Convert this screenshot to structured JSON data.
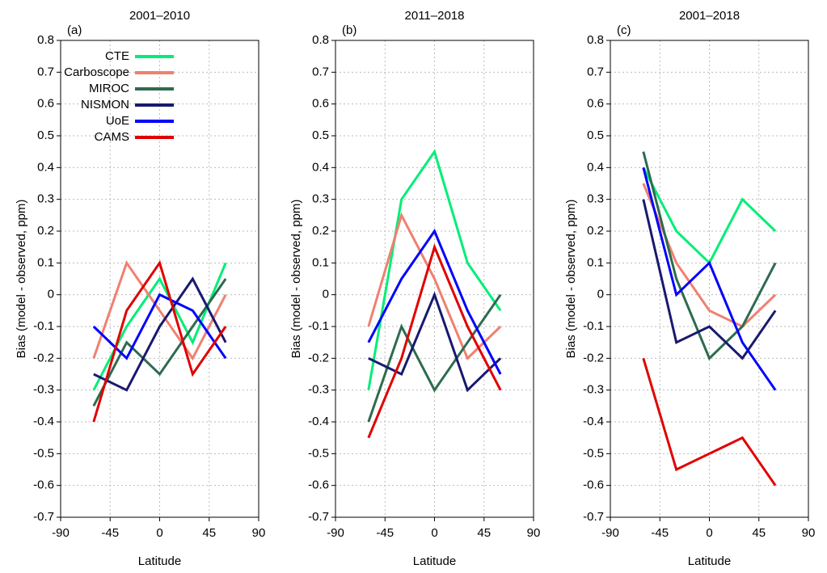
{
  "chart_data": [
    {
      "type": "line",
      "title": "2001–2010",
      "panel_label": "(a)",
      "ylabel": "Bias (model - observed, ppm)",
      "xlabel": "Latitude",
      "x": [
        -60,
        -30,
        0,
        30,
        60
      ],
      "xlim": [
        -90,
        90
      ],
      "xticks": [
        -90,
        -45,
        0,
        45,
        90
      ],
      "ylim": [
        -0.7,
        0.8
      ],
      "yticks": [
        -0.7,
        -0.6,
        -0.5,
        -0.4,
        -0.3,
        -0.2,
        -0.1,
        0,
        0.1,
        0.2,
        0.3,
        0.4,
        0.5,
        0.6,
        0.7,
        0.8
      ],
      "grid": true,
      "legend": "upper left",
      "series": [
        {
          "name": "CTE",
          "color": "#00ee77",
          "values": [
            -0.3,
            -0.1,
            0.05,
            -0.15,
            0.1
          ]
        },
        {
          "name": "Carboscope",
          "color": "#f08070",
          "values": [
            -0.2,
            0.1,
            -0.05,
            -0.2,
            0.0
          ]
        },
        {
          "name": "MIROC",
          "color": "#2e6b4f",
          "values": [
            -0.35,
            -0.15,
            -0.25,
            -0.1,
            0.05
          ]
        },
        {
          "name": "NISMON",
          "color": "#191970",
          "values": [
            -0.25,
            -0.3,
            -0.1,
            0.05,
            -0.15
          ]
        },
        {
          "name": "UoE",
          "color": "#0000ff",
          "values": [
            -0.1,
            -0.2,
            0.0,
            -0.05,
            -0.2
          ]
        },
        {
          "name": "CAMS",
          "color": "#e00000",
          "values": [
            -0.4,
            -0.05,
            0.1,
            -0.25,
            -0.1
          ]
        }
      ]
    },
    {
      "type": "line",
      "title": "2011–2018",
      "panel_label": "(b)",
      "ylabel": "Bias (model - observed, ppm)",
      "xlabel": "Latitude",
      "x": [
        -60,
        -30,
        0,
        30,
        60
      ],
      "xlim": [
        -90,
        90
      ],
      "xticks": [
        -90,
        -45,
        0,
        45,
        90
      ],
      "ylim": [
        -0.7,
        0.8
      ],
      "yticks": [
        -0.7,
        -0.6,
        -0.5,
        -0.4,
        -0.3,
        -0.2,
        -0.1,
        0,
        0.1,
        0.2,
        0.3,
        0.4,
        0.5,
        0.6,
        0.7,
        0.8
      ],
      "grid": true,
      "series": [
        {
          "name": "CTE",
          "color": "#00ee77",
          "values": [
            -0.3,
            0.3,
            0.45,
            0.1,
            -0.05
          ]
        },
        {
          "name": "Carboscope",
          "color": "#f08070",
          "values": [
            -0.1,
            0.25,
            0.05,
            -0.2,
            -0.1
          ]
        },
        {
          "name": "MIROC",
          "color": "#2e6b4f",
          "values": [
            -0.4,
            -0.1,
            -0.3,
            -0.15,
            0.0
          ]
        },
        {
          "name": "NISMON",
          "color": "#191970",
          "values": [
            -0.2,
            -0.25,
            0.0,
            -0.3,
            -0.2
          ]
        },
        {
          "name": "UoE",
          "color": "#0000ff",
          "values": [
            -0.15,
            0.05,
            0.2,
            -0.05,
            -0.25
          ]
        },
        {
          "name": "CAMS",
          "color": "#e00000",
          "values": [
            -0.45,
            -0.2,
            0.15,
            -0.1,
            -0.3
          ]
        }
      ]
    },
    {
      "type": "line",
      "title": "2001–2018",
      "panel_label": "(c)",
      "ylabel": "Bias (model - observed, ppm)",
      "xlabel": "Latitude",
      "x": [
        -60,
        -30,
        0,
        30,
        60
      ],
      "xlim": [
        -90,
        90
      ],
      "xticks": [
        -90,
        -45,
        0,
        45,
        90
      ],
      "ylim": [
        -0.7,
        0.8
      ],
      "yticks": [
        -0.7,
        -0.6,
        -0.5,
        -0.4,
        -0.3,
        -0.2,
        -0.1,
        0,
        0.1,
        0.2,
        0.3,
        0.4,
        0.5,
        0.6,
        0.7,
        0.8
      ],
      "grid": true,
      "series": [
        {
          "name": "CTE",
          "color": "#00ee77",
          "values": [
            0.4,
            0.2,
            0.1,
            0.3,
            0.2
          ]
        },
        {
          "name": "Carboscope",
          "color": "#f08070",
          "values": [
            0.35,
            0.1,
            -0.05,
            -0.1,
            0.0
          ]
        },
        {
          "name": "MIROC",
          "color": "#2e6b4f",
          "values": [
            0.45,
            0.05,
            -0.2,
            -0.1,
            0.1
          ]
        },
        {
          "name": "NISMON",
          "color": "#191970",
          "values": [
            0.3,
            -0.15,
            -0.1,
            -0.2,
            -0.05
          ]
        },
        {
          "name": "UoE",
          "color": "#0000ff",
          "values": [
            0.4,
            0.0,
            0.1,
            -0.15,
            -0.3
          ]
        },
        {
          "name": "CAMS",
          "color": "#e00000",
          "values": [
            -0.2,
            -0.55,
            -0.5,
            -0.45,
            -0.6
          ]
        }
      ]
    }
  ]
}
